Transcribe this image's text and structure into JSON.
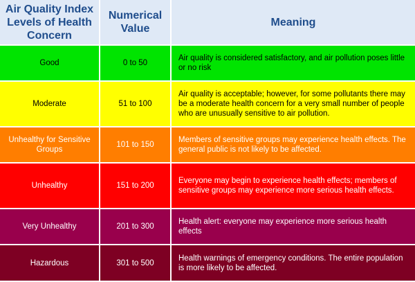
{
  "headers": [
    "Air Quality Index Levels of Health Concern",
    "Numerical Value",
    "Meaning"
  ],
  "rows": [
    {
      "level": "Good",
      "value": "0 to 50",
      "meaning": "Air quality is considered satisfactory, and air pollution poses little or no risk",
      "color": "#00e400"
    },
    {
      "level": "Moderate",
      "value": "51 to 100",
      "meaning": "Air quality is acceptable; however, for some pollutants there may be a moderate health concern for a very small number of people who are unusually sensitive to air pollution.",
      "color": "#ffff00"
    },
    {
      "level": "Unhealthy for Sensitive Groups",
      "value": "101 to 150",
      "meaning": "Members of sensitive groups may experience health effects. The general public is not likely to be affected.",
      "color": "#ff7e00"
    },
    {
      "level": "Unhealthy",
      "value": "151 to 200",
      "meaning": "Everyone may begin to experience health effects; members of sensitive groups may experience more serious health effects.",
      "color": "#ff0000"
    },
    {
      "level": "Very Unhealthy",
      "value": "201 to 300",
      "meaning": "Health alert: everyone may experience more serious health effects",
      "color": "#99004c"
    },
    {
      "level": "Hazardous",
      "value": "301 to 500",
      "meaning": "Health warnings of emergency conditions. The entire population is more likely to be affected.",
      "color": "#7e0023"
    }
  ]
}
